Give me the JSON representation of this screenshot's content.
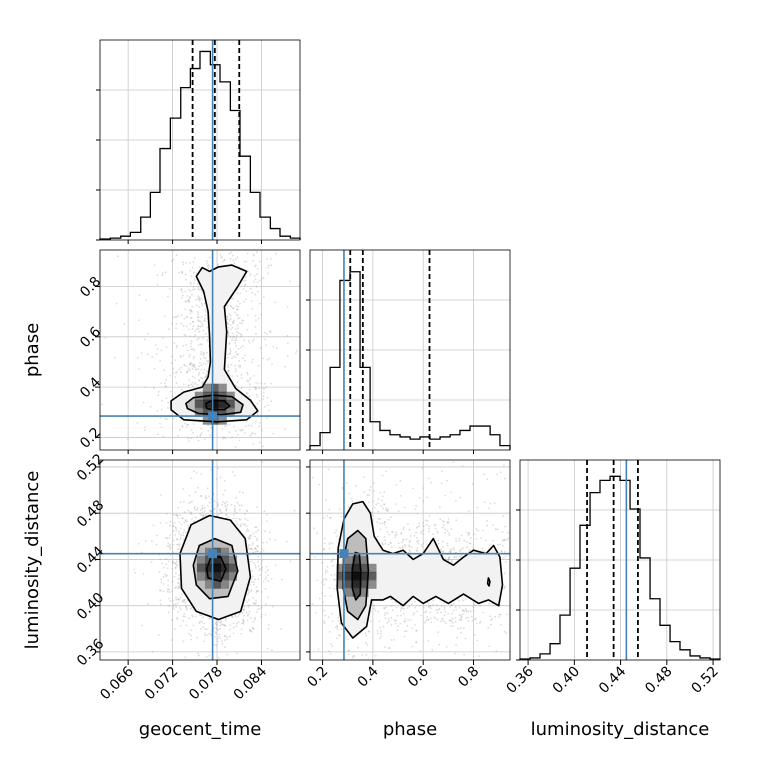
{
  "chart_data": {
    "type": "corner",
    "parameters": [
      "geocent_time",
      "phase",
      "luminosity_distance"
    ],
    "truths": {
      "geocent_time": 0.0774,
      "phase": 0.285,
      "luminosity_distance": 0.445
    },
    "truth_color": "#4682b4",
    "quantile_color": "#000000",
    "grid": true,
    "ranges": {
      "geocent_time": [
        0.0622,
        0.0892
      ],
      "phase": [
        0.15,
        0.945
      ],
      "luminosity_distance": [
        0.353,
        0.526
      ]
    },
    "ticks": {
      "geocent_time": [
        "0.066",
        "0.072",
        "0.078",
        "0.084"
      ],
      "phase": [
        "0.2",
        "0.4",
        "0.6",
        "0.8"
      ],
      "luminosity_distance": [
        "0.36",
        "0.40",
        "0.44",
        "0.48",
        "0.52"
      ]
    },
    "panels": [
      {
        "id": "hist_geocent_time",
        "type": "histogram",
        "parameter": "geocent_time",
        "bin_edges": [
          0.0622,
          0.0636,
          0.065,
          0.0663,
          0.0677,
          0.069,
          0.0703,
          0.0717,
          0.0731,
          0.0744,
          0.0757,
          0.0771,
          0.0784,
          0.0798,
          0.0811,
          0.0825,
          0.0838,
          0.0852,
          0.0865,
          0.0879,
          0.0892
        ],
        "counts": [
          0.005,
          0.01,
          0.02,
          0.04,
          0.12,
          0.25,
          0.48,
          0.64,
          0.8,
          0.9,
          0.99,
          0.92,
          0.83,
          0.68,
          0.44,
          0.25,
          0.12,
          0.06,
          0.02,
          0.01
        ],
        "ymax": 1.05,
        "quantiles": [
          0.0747,
          0.0777,
          0.081
        ]
      },
      {
        "id": "hist_phase",
        "type": "histogram",
        "parameter": "phase",
        "bin_edges": [
          0.15,
          0.19,
          0.23,
          0.269,
          0.309,
          0.349,
          0.389,
          0.428,
          0.468,
          0.508,
          0.548,
          0.587,
          0.627,
          0.667,
          0.707,
          0.746,
          0.786,
          0.826,
          0.866,
          0.905,
          0.945
        ],
        "counts": [
          0.02,
          0.08,
          0.38,
          0.78,
          0.82,
          0.38,
          0.13,
          0.09,
          0.07,
          0.06,
          0.05,
          0.06,
          0.05,
          0.06,
          0.07,
          0.09,
          0.11,
          0.11,
          0.07,
          0.02
        ],
        "ymax": 0.92,
        "quantiles": [
          0.31,
          0.36,
          0.625
        ]
      },
      {
        "id": "hist_luminosity_distance",
        "type": "histogram",
        "parameter": "luminosity_distance",
        "bin_edges": [
          0.353,
          0.3617,
          0.3703,
          0.379,
          0.3876,
          0.3963,
          0.4049,
          0.4136,
          0.4222,
          0.4309,
          0.4395,
          0.4482,
          0.4568,
          0.4655,
          0.4741,
          0.4828,
          0.4914,
          0.5001,
          0.5087,
          0.5174,
          0.526
        ],
        "counts": [
          0.005,
          0.01,
          0.03,
          0.08,
          0.22,
          0.45,
          0.66,
          0.82,
          0.88,
          0.9,
          0.88,
          0.74,
          0.5,
          0.3,
          0.17,
          0.09,
          0.05,
          0.02,
          0.01,
          0.005
        ],
        "ymax": 0.98,
        "quantiles": [
          0.411,
          0.434,
          0.455
        ]
      },
      {
        "id": "kde_phase_vs_geocent_time",
        "type": "2d-density",
        "x": "geocent_time",
        "y": "phase",
        "mode": [
          0.0777,
          0.33
        ],
        "contours": [
          [
            [
              0.0766,
              0.315
            ],
            [
              0.0774,
              0.31
            ],
            [
              0.079,
              0.31
            ],
            [
              0.0797,
              0.325
            ],
            [
              0.079,
              0.345
            ],
            [
              0.0774,
              0.348
            ],
            [
              0.0765,
              0.335
            ]
          ],
          [
            [
              0.074,
              0.315
            ],
            [
              0.0755,
              0.295
            ],
            [
              0.0785,
              0.29
            ],
            [
              0.0812,
              0.3
            ],
            [
              0.0815,
              0.33
            ],
            [
              0.08,
              0.362
            ],
            [
              0.0775,
              0.368
            ],
            [
              0.0748,
              0.358
            ],
            [
              0.0738,
              0.335
            ]
          ],
          [
            [
              0.0718,
              0.31
            ],
            [
              0.0735,
              0.27
            ],
            [
              0.078,
              0.262
            ],
            [
              0.082,
              0.27
            ],
            [
              0.0835,
              0.305
            ],
            [
              0.0825,
              0.348
            ],
            [
              0.0805,
              0.395
            ],
            [
              0.079,
              0.47
            ],
            [
              0.0793,
              0.62
            ],
            [
              0.079,
              0.72
            ],
            [
              0.0808,
              0.8
            ],
            [
              0.082,
              0.86
            ],
            [
              0.08,
              0.885
            ],
            [
              0.0782,
              0.878
            ],
            [
              0.077,
              0.86
            ],
            [
              0.076,
              0.875
            ],
            [
              0.0752,
              0.84
            ],
            [
              0.0762,
              0.78
            ],
            [
              0.0768,
              0.7
            ],
            [
              0.077,
              0.6
            ],
            [
              0.0771,
              0.5
            ],
            [
              0.0768,
              0.44
            ],
            [
              0.076,
              0.4
            ],
            [
              0.0735,
              0.38
            ],
            [
              0.0718,
              0.345
            ]
          ]
        ]
      },
      {
        "id": "kde_luminosity_distance_vs_geocent_time",
        "type": "2d-density",
        "x": "geocent_time",
        "y": "luminosity_distance",
        "mode": [
          0.078,
          0.432
        ],
        "contours": [
          [
            [
              0.0768,
              0.424
            ],
            [
              0.0785,
              0.421
            ],
            [
              0.0792,
              0.432
            ],
            [
              0.0785,
              0.442
            ],
            [
              0.0772,
              0.442
            ],
            [
              0.0766,
              0.432
            ]
          ],
          [
            [
              0.0752,
              0.418
            ],
            [
              0.077,
              0.406
            ],
            [
              0.0795,
              0.408
            ],
            [
              0.0808,
              0.43
            ],
            [
              0.08,
              0.452
            ],
            [
              0.0777,
              0.458
            ],
            [
              0.0756,
              0.452
            ],
            [
              0.0748,
              0.435
            ]
          ],
          [
            [
              0.0732,
              0.415
            ],
            [
              0.0752,
              0.395
            ],
            [
              0.0782,
              0.388
            ],
            [
              0.0812,
              0.395
            ],
            [
              0.0825,
              0.425
            ],
            [
              0.0818,
              0.458
            ],
            [
              0.0798,
              0.474
            ],
            [
              0.077,
              0.478
            ],
            [
              0.0745,
              0.47
            ],
            [
              0.073,
              0.445
            ]
          ]
        ]
      },
      {
        "id": "kde_luminosity_distance_vs_phase",
        "type": "2d-density",
        "x": "phase",
        "y": "luminosity_distance",
        "mode": [
          0.335,
          0.425
        ],
        "contours": [
          [
            [
              0.318,
              0.415
            ],
            [
              0.332,
              0.405
            ],
            [
              0.35,
              0.41
            ],
            [
              0.352,
              0.43
            ],
            [
              0.346,
              0.445
            ],
            [
              0.33,
              0.446
            ],
            [
              0.318,
              0.432
            ]
          ],
          [
            [
              0.282,
              0.415
            ],
            [
              0.3,
              0.395
            ],
            [
              0.34,
              0.388
            ],
            [
              0.372,
              0.4
            ],
            [
              0.382,
              0.43
            ],
            [
              0.372,
              0.458
            ],
            [
              0.34,
              0.465
            ],
            [
              0.3,
              0.458
            ],
            [
              0.283,
              0.44
            ]
          ],
          [
            [
              0.258,
              0.415
            ],
            [
              0.275,
              0.385
            ],
            [
              0.32,
              0.372
            ],
            [
              0.375,
              0.382
            ],
            [
              0.395,
              0.405
            ],
            [
              0.44,
              0.405
            ],
            [
              0.47,
              0.408
            ],
            [
              0.52,
              0.4
            ],
            [
              0.56,
              0.408
            ],
            [
              0.6,
              0.402
            ],
            [
              0.65,
              0.408
            ],
            [
              0.7,
              0.402
            ],
            [
              0.76,
              0.41
            ],
            [
              0.82,
              0.402
            ],
            [
              0.86,
              0.405
            ],
            [
              0.9,
              0.4
            ],
            [
              0.915,
              0.418
            ],
            [
              0.905,
              0.442
            ],
            [
              0.88,
              0.452
            ],
            [
              0.85,
              0.445
            ],
            [
              0.8,
              0.448
            ],
            [
              0.76,
              0.442
            ],
            [
              0.72,
              0.435
            ],
            [
              0.68,
              0.44
            ],
            [
              0.64,
              0.458
            ],
            [
              0.6,
              0.445
            ],
            [
              0.56,
              0.44
            ],
            [
              0.52,
              0.448
            ],
            [
              0.48,
              0.445
            ],
            [
              0.44,
              0.448
            ],
            [
              0.405,
              0.46
            ],
            [
              0.39,
              0.48
            ],
            [
              0.36,
              0.49
            ],
            [
              0.32,
              0.488
            ],
            [
              0.285,
              0.475
            ],
            [
              0.262,
              0.45
            ]
          ],
          [
            [
              0.856,
              0.419
            ],
            [
              0.862,
              0.417
            ],
            [
              0.865,
              0.421
            ],
            [
              0.859,
              0.424
            ]
          ]
        ]
      }
    ]
  }
}
